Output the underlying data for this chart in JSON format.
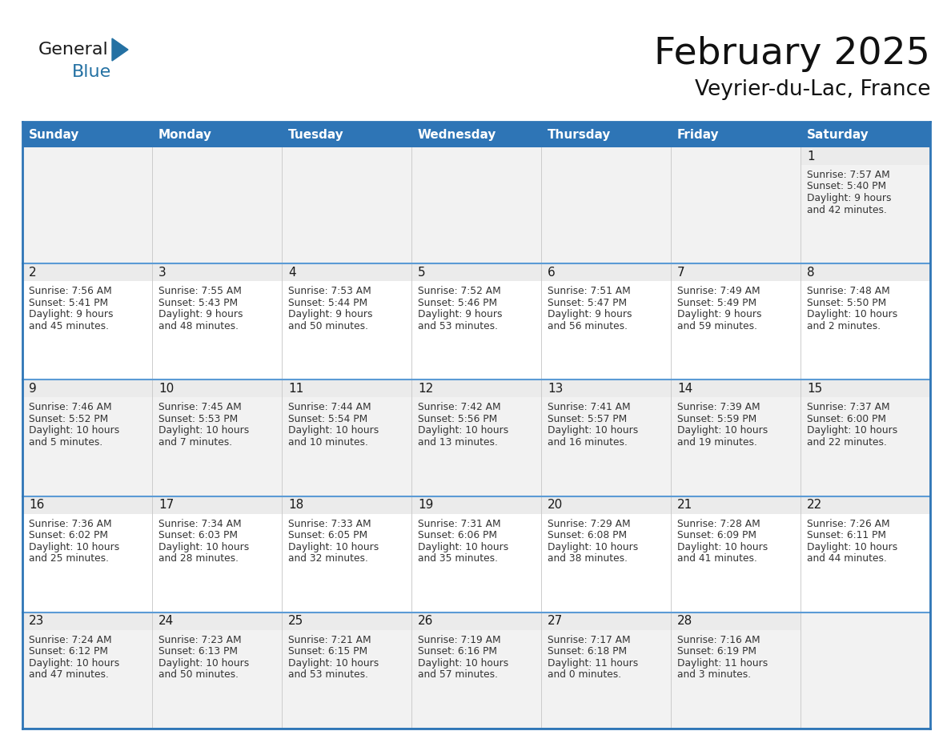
{
  "title": "February 2025",
  "subtitle": "Veyrier-du-Lac, France",
  "header_bg": "#2E75B6",
  "header_text": "#FFFFFF",
  "cell_bg_white": "#FFFFFF",
  "cell_bg_gray": "#F2F2F2",
  "day_num_bg": "#EBEBEB",
  "border_color": "#2E75B6",
  "border_color_light": "#5B9BD5",
  "days_of_week": [
    "Sunday",
    "Monday",
    "Tuesday",
    "Wednesday",
    "Thursday",
    "Friday",
    "Saturday"
  ],
  "day_text_color": "#1a1a1a",
  "info_text_color": "#333333",
  "calendar_data": [
    [
      null,
      null,
      null,
      null,
      null,
      null,
      {
        "day": 1,
        "sunrise": "7:57 AM",
        "sunset": "5:40 PM",
        "daylight_line1": "9 hours",
        "daylight_line2": "and 42 minutes."
      }
    ],
    [
      {
        "day": 2,
        "sunrise": "7:56 AM",
        "sunset": "5:41 PM",
        "daylight_line1": "9 hours",
        "daylight_line2": "and 45 minutes."
      },
      {
        "day": 3,
        "sunrise": "7:55 AM",
        "sunset": "5:43 PM",
        "daylight_line1": "9 hours",
        "daylight_line2": "and 48 minutes."
      },
      {
        "day": 4,
        "sunrise": "7:53 AM",
        "sunset": "5:44 PM",
        "daylight_line1": "9 hours",
        "daylight_line2": "and 50 minutes."
      },
      {
        "day": 5,
        "sunrise": "7:52 AM",
        "sunset": "5:46 PM",
        "daylight_line1": "9 hours",
        "daylight_line2": "and 53 minutes."
      },
      {
        "day": 6,
        "sunrise": "7:51 AM",
        "sunset": "5:47 PM",
        "daylight_line1": "9 hours",
        "daylight_line2": "and 56 minutes."
      },
      {
        "day": 7,
        "sunrise": "7:49 AM",
        "sunset": "5:49 PM",
        "daylight_line1": "9 hours",
        "daylight_line2": "and 59 minutes."
      },
      {
        "day": 8,
        "sunrise": "7:48 AM",
        "sunset": "5:50 PM",
        "daylight_line1": "10 hours",
        "daylight_line2": "and 2 minutes."
      }
    ],
    [
      {
        "day": 9,
        "sunrise": "7:46 AM",
        "sunset": "5:52 PM",
        "daylight_line1": "10 hours",
        "daylight_line2": "and 5 minutes."
      },
      {
        "day": 10,
        "sunrise": "7:45 AM",
        "sunset": "5:53 PM",
        "daylight_line1": "10 hours",
        "daylight_line2": "and 7 minutes."
      },
      {
        "day": 11,
        "sunrise": "7:44 AM",
        "sunset": "5:54 PM",
        "daylight_line1": "10 hours",
        "daylight_line2": "and 10 minutes."
      },
      {
        "day": 12,
        "sunrise": "7:42 AM",
        "sunset": "5:56 PM",
        "daylight_line1": "10 hours",
        "daylight_line2": "and 13 minutes."
      },
      {
        "day": 13,
        "sunrise": "7:41 AM",
        "sunset": "5:57 PM",
        "daylight_line1": "10 hours",
        "daylight_line2": "and 16 minutes."
      },
      {
        "day": 14,
        "sunrise": "7:39 AM",
        "sunset": "5:59 PM",
        "daylight_line1": "10 hours",
        "daylight_line2": "and 19 minutes."
      },
      {
        "day": 15,
        "sunrise": "7:37 AM",
        "sunset": "6:00 PM",
        "daylight_line1": "10 hours",
        "daylight_line2": "and 22 minutes."
      }
    ],
    [
      {
        "day": 16,
        "sunrise": "7:36 AM",
        "sunset": "6:02 PM",
        "daylight_line1": "10 hours",
        "daylight_line2": "and 25 minutes."
      },
      {
        "day": 17,
        "sunrise": "7:34 AM",
        "sunset": "6:03 PM",
        "daylight_line1": "10 hours",
        "daylight_line2": "and 28 minutes."
      },
      {
        "day": 18,
        "sunrise": "7:33 AM",
        "sunset": "6:05 PM",
        "daylight_line1": "10 hours",
        "daylight_line2": "and 32 minutes."
      },
      {
        "day": 19,
        "sunrise": "7:31 AM",
        "sunset": "6:06 PM",
        "daylight_line1": "10 hours",
        "daylight_line2": "and 35 minutes."
      },
      {
        "day": 20,
        "sunrise": "7:29 AM",
        "sunset": "6:08 PM",
        "daylight_line1": "10 hours",
        "daylight_line2": "and 38 minutes."
      },
      {
        "day": 21,
        "sunrise": "7:28 AM",
        "sunset": "6:09 PM",
        "daylight_line1": "10 hours",
        "daylight_line2": "and 41 minutes."
      },
      {
        "day": 22,
        "sunrise": "7:26 AM",
        "sunset": "6:11 PM",
        "daylight_line1": "10 hours",
        "daylight_line2": "and 44 minutes."
      }
    ],
    [
      {
        "day": 23,
        "sunrise": "7:24 AM",
        "sunset": "6:12 PM",
        "daylight_line1": "10 hours",
        "daylight_line2": "and 47 minutes."
      },
      {
        "day": 24,
        "sunrise": "7:23 AM",
        "sunset": "6:13 PM",
        "daylight_line1": "10 hours",
        "daylight_line2": "and 50 minutes."
      },
      {
        "day": 25,
        "sunrise": "7:21 AM",
        "sunset": "6:15 PM",
        "daylight_line1": "10 hours",
        "daylight_line2": "and 53 minutes."
      },
      {
        "day": 26,
        "sunrise": "7:19 AM",
        "sunset": "6:16 PM",
        "daylight_line1": "10 hours",
        "daylight_line2": "and 57 minutes."
      },
      {
        "day": 27,
        "sunrise": "7:17 AM",
        "sunset": "6:18 PM",
        "daylight_line1": "11 hours",
        "daylight_line2": "and 0 minutes."
      },
      {
        "day": 28,
        "sunrise": "7:16 AM",
        "sunset": "6:19 PM",
        "daylight_line1": "11 hours",
        "daylight_line2": "and 3 minutes."
      },
      null
    ]
  ],
  "logo_text_general": "General",
  "logo_text_blue": "Blue",
  "logo_color_general": "#1a1a1a",
  "logo_color_blue": "#2471A3",
  "logo_triangle_color": "#2471A3"
}
